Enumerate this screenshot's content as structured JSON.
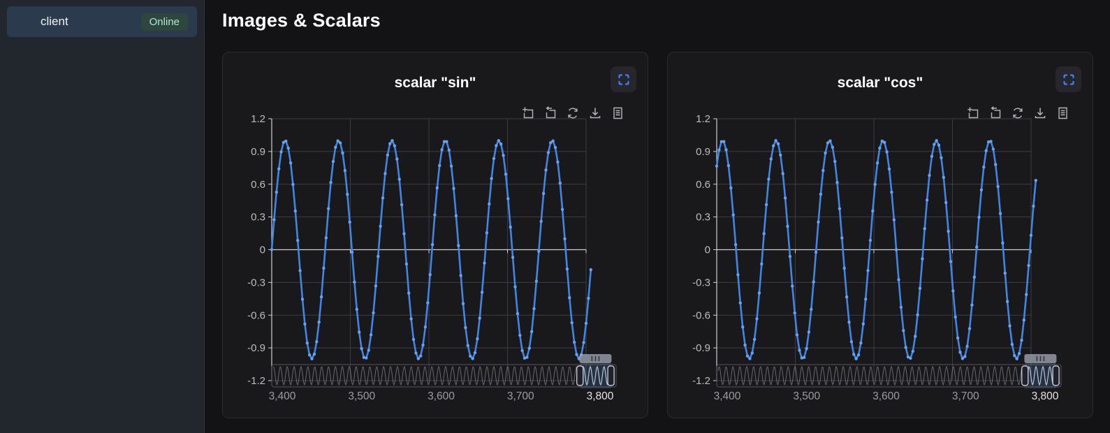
{
  "sidebar": {
    "client": {
      "label": "client",
      "status": "Online"
    }
  },
  "header": {
    "title": "Images & Scalars"
  },
  "icons": {
    "fullscreen": "fullscreen-expand-icon",
    "toolbar": [
      "box-select-zoom-icon",
      "zoom-reset-icon",
      "restore-icon",
      "save-image-icon",
      "data-view-icon"
    ]
  },
  "colors": {
    "accent_blue": "#3f83f7",
    "series_line": "#4285e2",
    "series_dot": "#65a2f2",
    "online_bg": "#2d473f",
    "online_text": "#b2e8cb",
    "sidebar_item_bg": "#2c3a4d",
    "page_bg": "#131316",
    "panel_bg": "#19191c",
    "grid": "#3c3d44",
    "axis_bright": "#cfd0d6",
    "tick_text": "#bcbcc5",
    "x_tick": "#9b9ca5",
    "x_tick_active": "#e4e5ea",
    "minimap": "rgba(170,172,182,0.55)",
    "minimap_active": "#a6c6e8",
    "window_fill": "rgba(130,165,225,0.16)",
    "handle_fill": "#20212b",
    "handle_stroke": "#c3c7d1",
    "toolbar_icon": "#b4b5bd"
  },
  "chart_data": [
    {
      "type": "line",
      "title": "scalar \"sin\"",
      "xlim": [
        3400,
        3800
      ],
      "ylim": [
        -1.2,
        1.2
      ],
      "y_ticks": [
        "1.2",
        "0.9",
        "0.6",
        "0.3",
        "0",
        "-0.3",
        "-0.6",
        "-0.9",
        "-1.2"
      ],
      "x_ticks": [
        "3,400",
        "3,500",
        "3,600",
        "3,700",
        "3,800"
      ],
      "active_x_tick_index": 4,
      "grid": true,
      "legend": "none",
      "series": [
        {
          "name": "sin",
          "function": "sin",
          "amplitude": 1,
          "period": 68,
          "phase_deg": 0,
          "x_start": 3400,
          "x_end": 3806,
          "n_points": 136,
          "start_value": 0.0,
          "end_value": -0.19
        }
      ],
      "zoom_window": {
        "start_frac": 0.895,
        "end_frac": 0.985
      },
      "minimap_cycles": 50
    },
    {
      "type": "line",
      "title": "scalar \"cos\"",
      "xlim": [
        3400,
        3800
      ],
      "ylim": [
        -1.2,
        1.2
      ],
      "y_ticks": [
        "1.2",
        "0.9",
        "0.6",
        "0.3",
        "0",
        "-0.3",
        "-0.6",
        "-0.9",
        "-1.2"
      ],
      "x_ticks": [
        "3,400",
        "3,500",
        "3,600",
        "3,700",
        "3,800"
      ],
      "active_x_tick_index": 4,
      "grid": true,
      "legend": "none",
      "series": [
        {
          "name": "cos",
          "function": "cos",
          "amplitude": 1,
          "period": 68,
          "phase_deg": 320,
          "x_start": 3400,
          "x_end": 3806,
          "n_points": 136,
          "start_value": 0.77,
          "end_value": 0.64
        }
      ],
      "zoom_window": {
        "start_frac": 0.895,
        "end_frac": 0.985
      },
      "minimap_cycles": 50
    }
  ]
}
